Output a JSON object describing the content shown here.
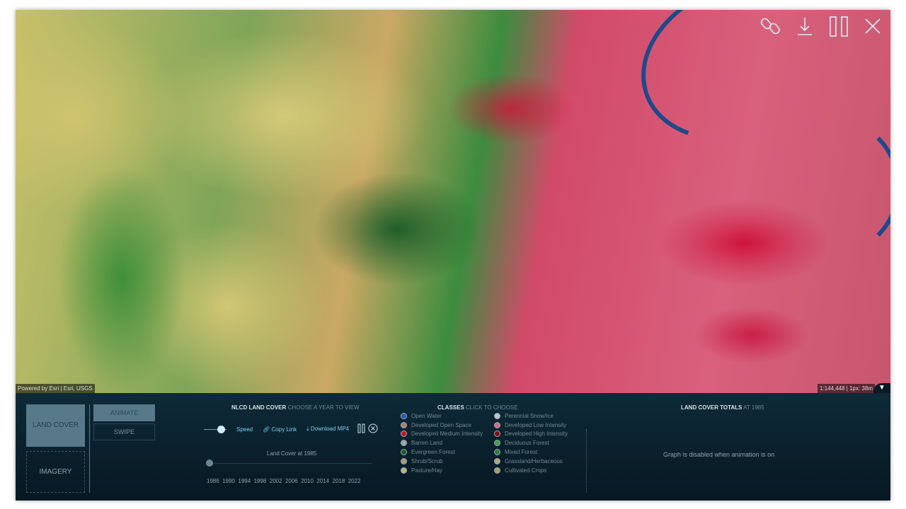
{
  "map": {
    "attribution": "Powered by Esri | Esri, USGS",
    "scale": "1:144,448 | 1px: 38m"
  },
  "toolbar": {
    "icons": [
      "link-icon",
      "download-icon",
      "pause-icon",
      "close-icon"
    ]
  },
  "tabs": {
    "land_cover": "LAND COVER",
    "imagery": "IMAGERY",
    "animate": "ANIMATE",
    "swipe": "SWIPE"
  },
  "timeline": {
    "title": "NLCD LAND COVER",
    "subtitle": "CHOOSE A YEAR TO VIEW",
    "speed": "Speed",
    "copy_link": "Copy Link",
    "download": "Download MP4",
    "current": "Land Cover at 1985",
    "years": [
      "1986",
      "1990",
      "1994",
      "1998",
      "2002",
      "2006",
      "2010",
      "2014",
      "2018",
      "2022"
    ],
    "position": 0
  },
  "classes": {
    "title": "CLASSES",
    "subtitle": "CLICK TO CHOOSE",
    "items": [
      {
        "label": "Open Water",
        "color": "#2a5aa8"
      },
      {
        "label": "Perennial Snow/Ice",
        "color": "#b9c8cc"
      },
      {
        "label": "Developed Open Space",
        "color": "#b07a70"
      },
      {
        "label": "Developed Low Intensity",
        "color": "#d0707a"
      },
      {
        "label": "Developed Medium Intensity",
        "color": "#b8182c"
      },
      {
        "label": "Developed High Intensity",
        "color": "#8a0a18"
      },
      {
        "label": "Barren Land",
        "color": "#9aa4a0"
      },
      {
        "label": "Deciduous Forest",
        "color": "#4a9a4a"
      },
      {
        "label": "Evergreen Forest",
        "color": "#1e5a2a"
      },
      {
        "label": "Mixed Forest",
        "color": "#2f7a3a"
      },
      {
        "label": "Shrub/Scrub",
        "color": "#a89a70"
      },
      {
        "label": "Grassland/Herbaceous",
        "color": "#b0aa80"
      },
      {
        "label": "Pasture/Hay",
        "color": "#bcb470"
      },
      {
        "label": "Cultivated Crops",
        "color": "#a8a060"
      }
    ]
  },
  "totals": {
    "title": "LAND COVER TOTALS",
    "subtitle": "AT 1985",
    "message": "Graph is disabled when animation is on"
  }
}
